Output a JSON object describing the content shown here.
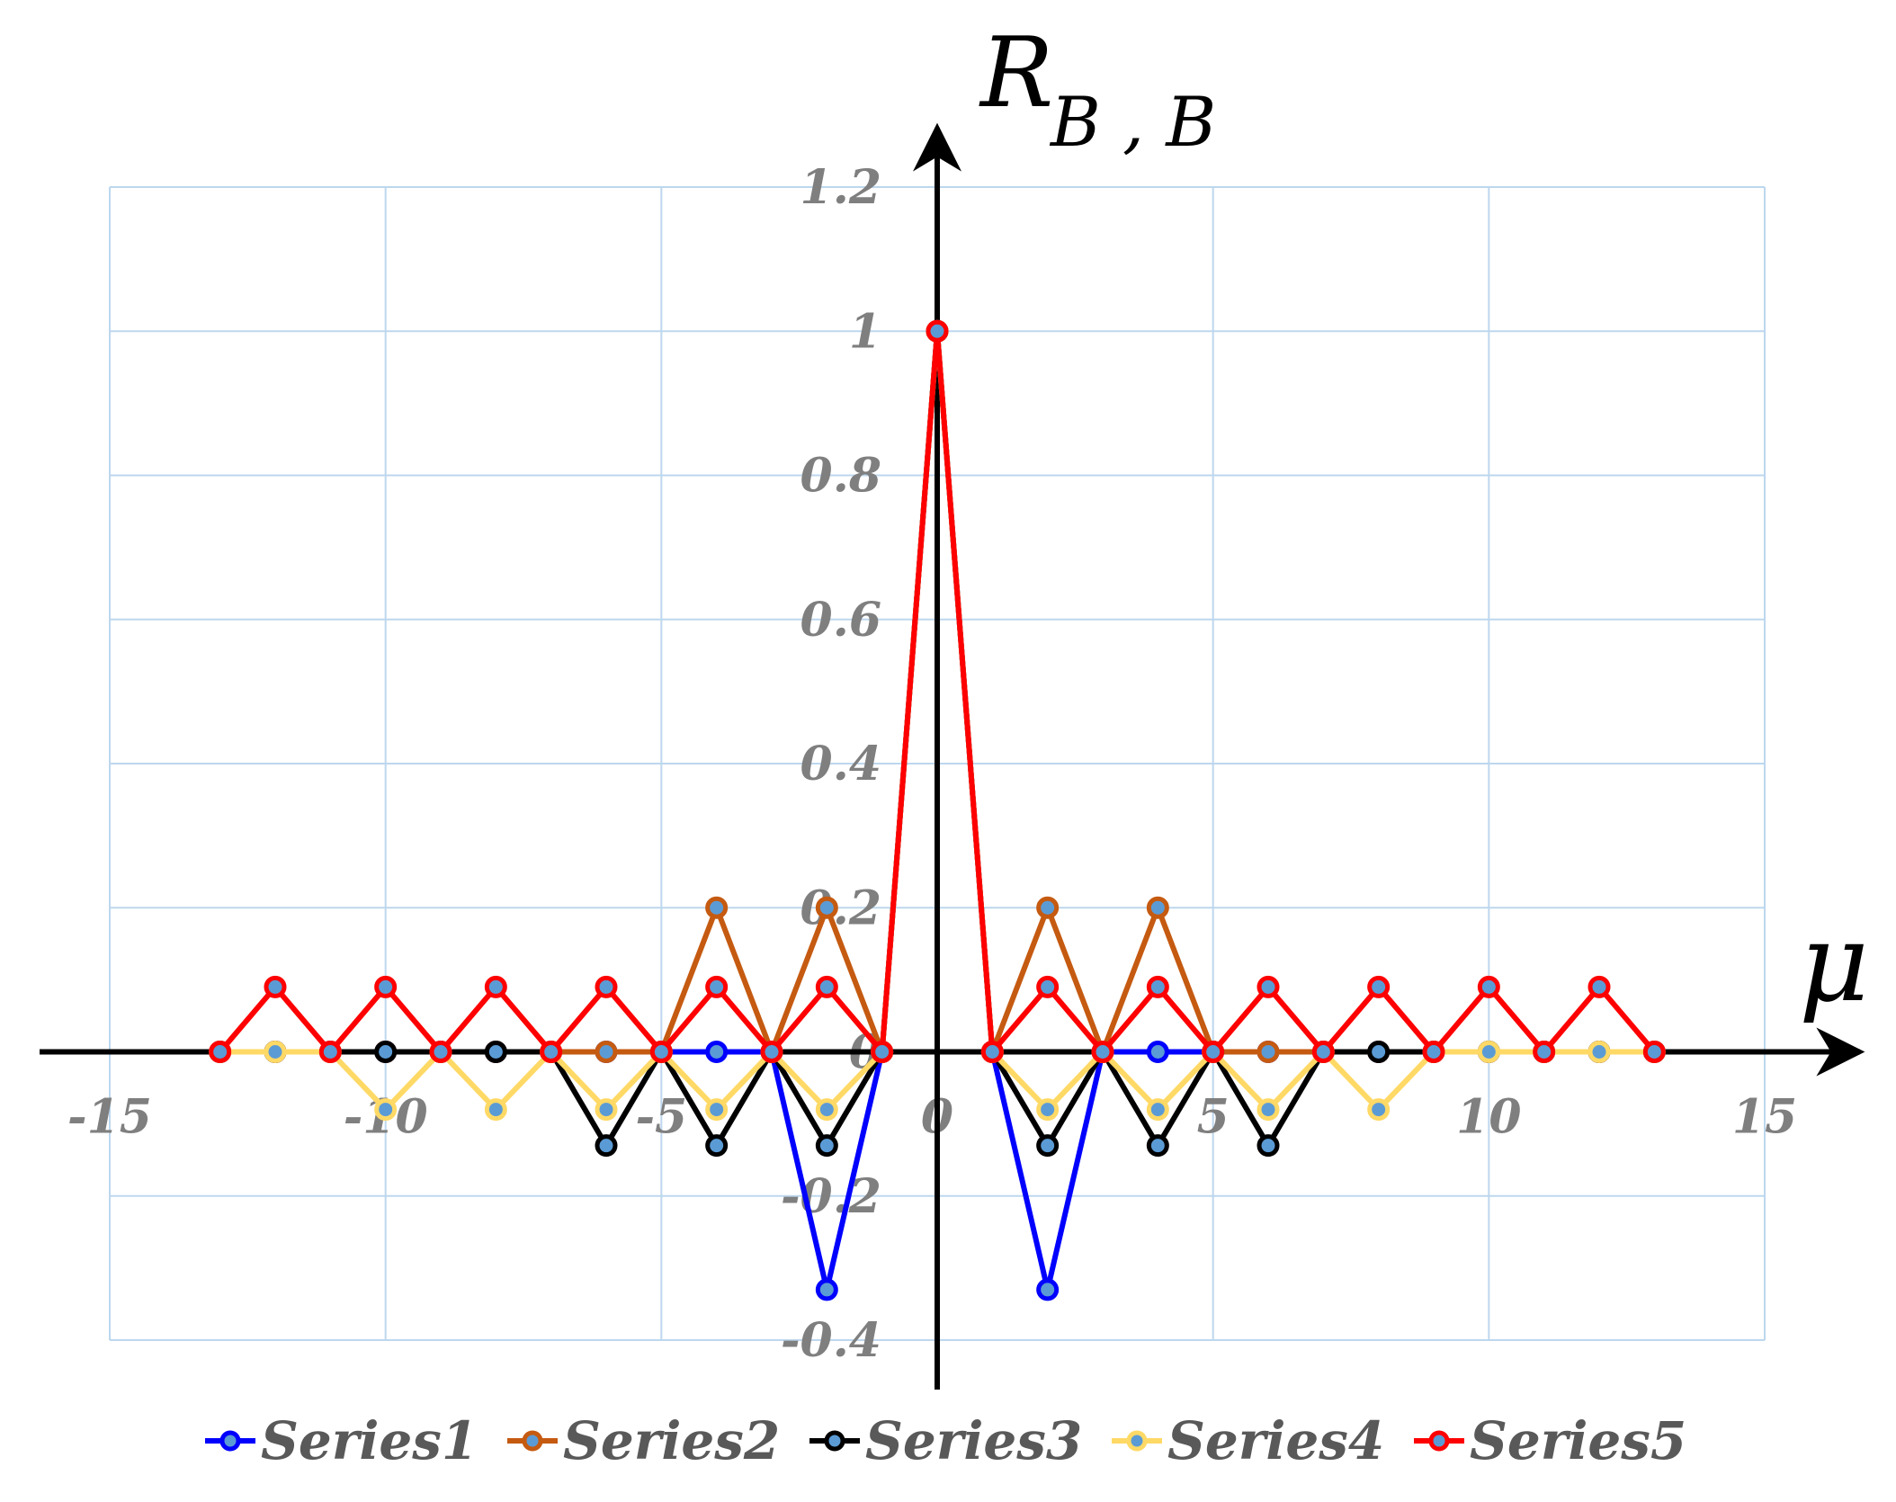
{
  "chart_data": {
    "type": "line",
    "title": "",
    "xlabel": "μ",
    "ylabel_main": "R",
    "ylabel_sub": "B , B",
    "xlim": [
      -15,
      15
    ],
    "ylim": [
      -0.4,
      1.2
    ],
    "xticks": [
      -15,
      -10,
      -5,
      0,
      5,
      10,
      15
    ],
    "yticks": [
      1.2,
      1,
      0.8,
      0.6,
      0.4,
      0.2,
      0,
      -0.2,
      -0.4
    ],
    "xtick_labels": [
      "-15",
      "-10",
      "-5",
      "0",
      "5",
      "10",
      "15"
    ],
    "ytick_labels": [
      "1.2",
      "1",
      "0.8",
      "0.6",
      "0.4",
      "0.2",
      "0",
      "-0.2",
      "-0.4"
    ],
    "grid": true,
    "legend_position": "bottom",
    "series": [
      {
        "name": "Series1",
        "color": "#0000ff",
        "x": [
          -13,
          -12,
          -11,
          -10,
          -9,
          -8,
          -7,
          -6,
          -5,
          -4,
          -3,
          -2,
          -1,
          0,
          1,
          2,
          3,
          4,
          5,
          6,
          7,
          8,
          9,
          10,
          11,
          12,
          13
        ],
        "values": [
          0,
          0,
          0,
          0,
          0,
          0,
          0,
          0,
          0,
          0,
          0,
          -0.33,
          0,
          1,
          0,
          -0.33,
          0,
          0,
          0,
          0,
          0,
          0,
          0,
          0,
          0,
          0,
          0
        ]
      },
      {
        "name": "Series2",
        "color": "#c55a11",
        "x": [
          -13,
          -12,
          -11,
          -10,
          -9,
          -8,
          -7,
          -6,
          -5,
          -4,
          -3,
          -2,
          -1,
          0,
          1,
          2,
          3,
          4,
          5,
          6,
          7,
          8,
          9,
          10,
          11,
          12,
          13
        ],
        "values": [
          0,
          0,
          0,
          0,
          0,
          0,
          0,
          0,
          0,
          0.2,
          0,
          0.2,
          0,
          1,
          0,
          0.2,
          0,
          0.2,
          0,
          0,
          0,
          0,
          0,
          0,
          0,
          0,
          0
        ]
      },
      {
        "name": "Series3",
        "color": "#000000",
        "x": [
          -13,
          -12,
          -11,
          -10,
          -9,
          -8,
          -7,
          -6,
          -5,
          -4,
          -3,
          -2,
          -1,
          0,
          1,
          2,
          3,
          4,
          5,
          6,
          7,
          8,
          9,
          10,
          11,
          12,
          13
        ],
        "values": [
          0,
          0,
          0,
          0,
          0,
          0,
          0,
          -0.13,
          0,
          -0.13,
          0,
          -0.13,
          0,
          1,
          0,
          -0.13,
          0,
          -0.13,
          0,
          -0.13,
          0,
          0,
          0,
          0,
          0,
          0,
          0
        ]
      },
      {
        "name": "Series4",
        "color": "#ffd966",
        "x": [
          -13,
          -12,
          -11,
          -10,
          -9,
          -8,
          -7,
          -6,
          -5,
          -4,
          -3,
          -2,
          -1,
          0,
          1,
          2,
          3,
          4,
          5,
          6,
          7,
          8,
          9,
          10,
          11,
          12,
          13
        ],
        "values": [
          0,
          0,
          0,
          -0.08,
          0,
          -0.08,
          0,
          -0.08,
          0,
          -0.08,
          0,
          -0.08,
          0,
          1,
          0,
          -0.08,
          0,
          -0.08,
          0,
          -0.08,
          0,
          -0.08,
          0,
          0,
          0,
          0,
          0
        ]
      },
      {
        "name": "Series5",
        "color": "#ff0000",
        "x": [
          -13,
          -12,
          -11,
          -10,
          -9,
          -8,
          -7,
          -6,
          -5,
          -4,
          -3,
          -2,
          -1,
          0,
          1,
          2,
          3,
          4,
          5,
          6,
          7,
          8,
          9,
          10,
          11,
          12,
          13
        ],
        "values": [
          0,
          0.09,
          0,
          0.09,
          0,
          0.09,
          0,
          0.09,
          0,
          0.09,
          0,
          0.09,
          0,
          1,
          0,
          0.09,
          0,
          0.09,
          0,
          0.09,
          0,
          0.09,
          0,
          0.09,
          0,
          0.09,
          0
        ]
      }
    ]
  }
}
